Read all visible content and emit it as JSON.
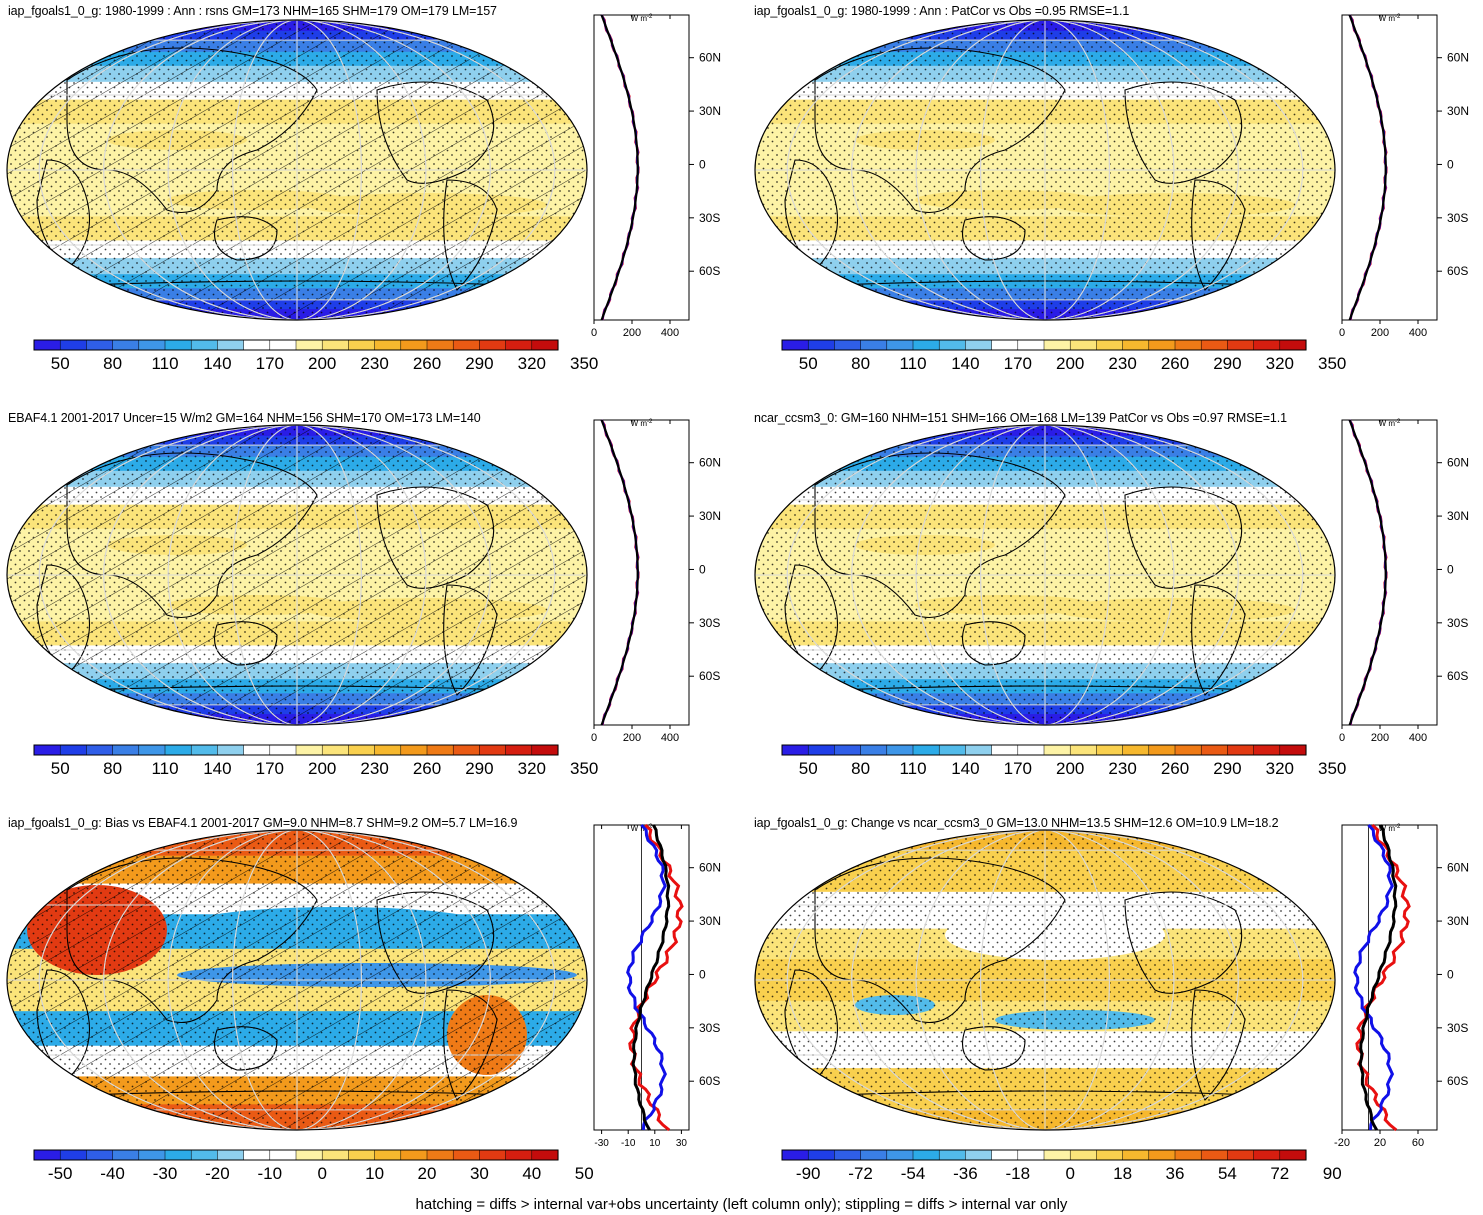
{
  "footer": "hatching = diffs > internal var+obs uncertainty (left column only); stippling = diffs > internal var only",
  "profile_unit": "W m",
  "profile_unit_exp": "-2",
  "colors": {
    "cmap_sequential": [
      "#2a1de6",
      "#1f3ee8",
      "#2f5ee8",
      "#3a7fe6",
      "#3e96e8",
      "#2cabe8",
      "#52bbea",
      "#8fd0ee",
      "#ffffff",
      "#ffffff",
      "#fdf3a6",
      "#fbe47a",
      "#f9d04e",
      "#f6b82e",
      "#f39a1c",
      "#ef7a16",
      "#ea5a14",
      "#e23a12",
      "#d61e10",
      "#c40c0c"
    ],
    "cmap_diverging": [
      "#2a1de6",
      "#1f3ee8",
      "#2f5ee8",
      "#3a7fe6",
      "#3e96e8",
      "#2cabe8",
      "#52bbea",
      "#8fd0ee",
      "#ffffff",
      "#ffffff",
      "#fdf3a6",
      "#fbe47a",
      "#f9d04e",
      "#f6b82e",
      "#f39a1c",
      "#ef7a16",
      "#ea5a14",
      "#e23a12",
      "#d61e10",
      "#c40c0c"
    ],
    "line_model": "#000000",
    "line_red": "#e81010",
    "line_blue": "#1010e8"
  },
  "lat_labels": [
    "60N",
    "30N",
    "0",
    "30S",
    "60S"
  ],
  "panels": [
    {
      "id": "model-annual",
      "title": "iap_fgoals1_0_g: 1980-1999 : Ann : rsns GM=173 NHM=165 SHM=179 OM=179 LM=157",
      "colorbar_labels": [
        "50",
        "80",
        "110",
        "140",
        "170",
        "200",
        "230",
        "260",
        "290",
        "320",
        "350"
      ],
      "profile_ticks": [
        "0",
        "200",
        "400"
      ],
      "hatched": true,
      "map_field": "sequential"
    },
    {
      "id": "model-patcor",
      "title": "iap_fgoals1_0_g: 1980-1999 : Ann : PatCor vs Obs =0.95 RMSE=1.1",
      "colorbar_labels": [
        "50",
        "80",
        "110",
        "140",
        "170",
        "200",
        "230",
        "260",
        "290",
        "320",
        "350"
      ],
      "profile_ticks": [
        "0",
        "200",
        "400"
      ],
      "hatched": false,
      "map_field": "sequential"
    },
    {
      "id": "obs-ebaf",
      "title": "EBAF4.1 2001-2017 Uncer=15 W/m2 GM=164 NHM=156 SHM=170 OM=173 LM=140",
      "colorbar_labels": [
        "50",
        "80",
        "110",
        "140",
        "170",
        "200",
        "230",
        "260",
        "290",
        "320",
        "350"
      ],
      "profile_ticks": [
        "0",
        "200",
        "400"
      ],
      "hatched": true,
      "map_field": "sequential"
    },
    {
      "id": "ref-model",
      "title": "ncar_ccsm3_0: GM=160 NHM=151 SHM=166 OM=168 LM=139 PatCor vs Obs =0.97 RMSE=1.1",
      "colorbar_labels": [
        "50",
        "80",
        "110",
        "140",
        "170",
        "200",
        "230",
        "260",
        "290",
        "320",
        "350"
      ],
      "profile_ticks": [
        "0",
        "200",
        "400"
      ],
      "hatched": false,
      "map_field": "sequential"
    },
    {
      "id": "bias",
      "title": "iap_fgoals1_0_g: Bias vs EBAF4.1 2001-2017 GM=9.0 NHM=8.7 SHM=9.2 OM=5.7 LM=16.9",
      "colorbar_labels": [
        "-50",
        "-40",
        "-30",
        "-20",
        "-10",
        "0",
        "10",
        "20",
        "30",
        "40",
        "50"
      ],
      "profile_ticks": [
        "-30",
        "-10",
        "10",
        "30"
      ],
      "hatched": true,
      "map_field": "bias"
    },
    {
      "id": "change",
      "title": "iap_fgoals1_0_g: Change vs ncar_ccsm3_0 GM=13.0 NHM=13.5 SHM=12.6 OM=10.9 LM=18.2",
      "colorbar_labels": [
        "-90",
        "-72",
        "-54",
        "-36",
        "-18",
        "0",
        "18",
        "36",
        "54",
        "72",
        "90"
      ],
      "profile_ticks": [
        "-20",
        "20",
        "60"
      ],
      "hatched": false,
      "map_field": "change"
    }
  ]
}
